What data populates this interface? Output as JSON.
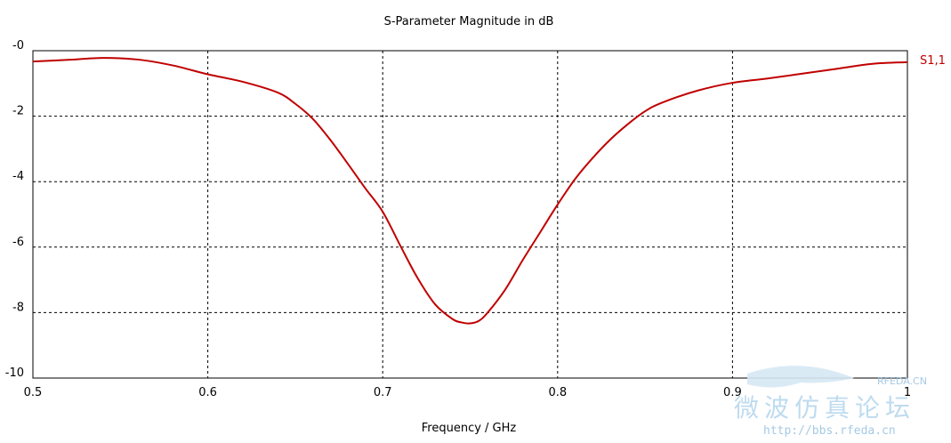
{
  "chart_data": {
    "type": "line",
    "title": "S-Parameter Magnitude in dB",
    "xlabel": "Frequency / GHz",
    "ylabel": "",
    "xlim": [
      0.5,
      1.0
    ],
    "ylim": [
      -10,
      0
    ],
    "xticks": [
      0.5,
      0.6,
      0.7,
      0.8,
      0.9,
      1.0
    ],
    "xtick_labels": [
      "0.5",
      "0.6",
      "0.7",
      "0.8",
      "0.9",
      "1"
    ],
    "yticks": [
      0,
      -2,
      -4,
      -6,
      -8,
      -10
    ],
    "ytick_labels": [
      "-0",
      "-2",
      "-4",
      "-6",
      "-8",
      "-10"
    ],
    "grid": true,
    "legend_position": "right",
    "series": [
      {
        "name": "S1,1",
        "color": "#c00000",
        "x": [
          0.5,
          0.52,
          0.54,
          0.56,
          0.58,
          0.6,
          0.62,
          0.64,
          0.65,
          0.66,
          0.67,
          0.68,
          0.69,
          0.7,
          0.71,
          0.72,
          0.73,
          0.74,
          0.745,
          0.75,
          0.755,
          0.76,
          0.77,
          0.78,
          0.79,
          0.8,
          0.81,
          0.82,
          0.83,
          0.84,
          0.85,
          0.86,
          0.88,
          0.9,
          0.92,
          0.94,
          0.96,
          0.98,
          1.0
        ],
        "values": [
          -0.33,
          -0.28,
          -0.22,
          -0.27,
          -0.45,
          -0.72,
          -0.95,
          -1.28,
          -1.62,
          -2.08,
          -2.72,
          -3.45,
          -4.2,
          -4.92,
          -5.95,
          -6.95,
          -7.75,
          -8.2,
          -8.3,
          -8.33,
          -8.25,
          -8.0,
          -7.3,
          -6.4,
          -5.55,
          -4.7,
          -3.92,
          -3.28,
          -2.72,
          -2.25,
          -1.85,
          -1.58,
          -1.22,
          -0.98,
          -0.85,
          -0.7,
          -0.55,
          -0.4,
          -0.35
        ]
      }
    ]
  },
  "watermark": {
    "chinese_text": "微波仿真论坛",
    "url": "http://bbs.rfeda.cn",
    "brand": "RFEDA.CN"
  }
}
